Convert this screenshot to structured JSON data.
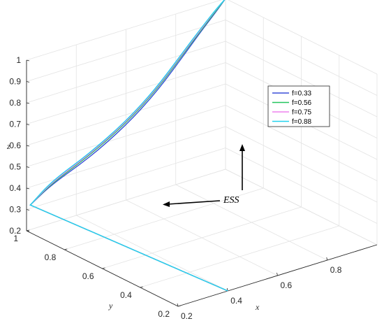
{
  "chart_data": {
    "type": "line",
    "projection": "3d",
    "grid": true,
    "legend_placement": "upper-right",
    "xlabel": "x",
    "ylabel": "y",
    "zlabel": "z",
    "xlim": [
      0.2,
      1
    ],
    "ylim": [
      0.2,
      1
    ],
    "zlim": [
      0.2,
      1
    ],
    "x_ticks": [
      "0.2",
      "0.4",
      "0.6",
      "0.8"
    ],
    "y_ticks": [
      "0.2",
      "0.4",
      "0.6",
      "0.8",
      "1"
    ],
    "z_ticks": [
      "0.2",
      "0.3",
      "0.4",
      "0.5",
      "0.6",
      "0.7",
      "0.8",
      "0.9",
      "1"
    ],
    "series": [
      {
        "name": "f=0.33",
        "color": "#3a4fd8",
        "points": [
          [
            0.4,
            0.2,
            0.2
          ],
          [
            0.2,
            0.98,
            0.33
          ],
          [
            0.3,
            1,
            0.38
          ],
          [
            0.45,
            1,
            0.45
          ],
          [
            0.6,
            1,
            0.55
          ],
          [
            0.72,
            1,
            0.66
          ],
          [
            0.82,
            1,
            0.78
          ],
          [
            0.9,
            1,
            0.88
          ],
          [
            0.96,
            1,
            0.95
          ],
          [
            1,
            1,
            1
          ]
        ]
      },
      {
        "name": "f=0.56",
        "color": "#22c55e",
        "points": [
          [
            0.4,
            0.2,
            0.2
          ],
          [
            0.2,
            0.98,
            0.33
          ],
          [
            0.3,
            1,
            0.385
          ],
          [
            0.45,
            1,
            0.46
          ],
          [
            0.6,
            1,
            0.56
          ],
          [
            0.72,
            1,
            0.67
          ],
          [
            0.82,
            1,
            0.79
          ],
          [
            0.9,
            1,
            0.885
          ],
          [
            0.96,
            1,
            0.955
          ],
          [
            1,
            1,
            1
          ]
        ]
      },
      {
        "name": "f=0.75",
        "color": "#ee82ee",
        "points": [
          [
            0.4,
            0.2,
            0.2
          ],
          [
            0.2,
            0.98,
            0.33
          ],
          [
            0.3,
            1,
            0.39
          ],
          [
            0.45,
            1,
            0.465
          ],
          [
            0.6,
            1,
            0.565
          ],
          [
            0.72,
            1,
            0.675
          ],
          [
            0.82,
            1,
            0.795
          ],
          [
            0.9,
            1,
            0.89
          ],
          [
            0.96,
            1,
            0.96
          ],
          [
            1,
            1,
            1
          ]
        ]
      },
      {
        "name": "f=0.88",
        "color": "#22d3ee",
        "points": [
          [
            0.4,
            0.2,
            0.2
          ],
          [
            0.2,
            0.98,
            0.33
          ],
          [
            0.3,
            1,
            0.395
          ],
          [
            0.45,
            1,
            0.47
          ],
          [
            0.6,
            1,
            0.57
          ],
          [
            0.72,
            1,
            0.68
          ],
          [
            0.82,
            1,
            0.8
          ],
          [
            0.9,
            1,
            0.895
          ],
          [
            0.96,
            1,
            0.962
          ],
          [
            1,
            1,
            1
          ]
        ]
      }
    ],
    "annotations": [
      {
        "text": "ESS"
      }
    ]
  }
}
